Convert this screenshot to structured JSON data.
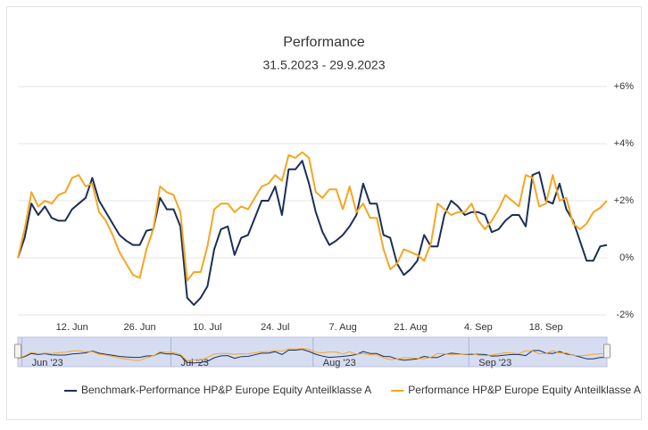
{
  "chart_data": {
    "type": "line",
    "title": "Performance",
    "subtitle": "31.5.2023 - 29.9.2023",
    "categories": [
      null,
      null,
      null,
      null,
      null,
      null,
      null,
      null,
      "12. Jun",
      null,
      null,
      null,
      null,
      null,
      null,
      null,
      null,
      null,
      "26. Jun",
      null,
      null,
      null,
      null,
      null,
      null,
      null,
      null,
      null,
      "10. Jul",
      null,
      null,
      null,
      null,
      null,
      null,
      null,
      null,
      null,
      "24. Jul",
      null,
      null,
      null,
      null,
      null,
      null,
      null,
      null,
      null,
      "7. Aug",
      null,
      null,
      null,
      null,
      null,
      null,
      null,
      null,
      null,
      "21. Aug",
      null,
      null,
      null,
      null,
      null,
      null,
      null,
      null,
      null,
      "4. Sep",
      null,
      null,
      null,
      null,
      null,
      null,
      null,
      null,
      null,
      "18. Sep",
      null,
      null,
      null,
      null,
      null,
      null,
      null,
      null,
      null
    ],
    "series": [
      {
        "name": "Benchmark-Performance HP&P Europe Equity Anteilklasse A",
        "color": "#1b2f55",
        "values": [
          0,
          0.7,
          1.9,
          1.5,
          1.8,
          1.4,
          1.3,
          1.3,
          1.7,
          1.9,
          2.1,
          2.8,
          2.0,
          1.6,
          1.2,
          0.8,
          0.6,
          0.45,
          0.45,
          0.95,
          1.0,
          2.1,
          1.7,
          1.7,
          1.1,
          -1.4,
          -1.65,
          -1.4,
          -1.0,
          0.3,
          1.0,
          1.1,
          0.1,
          0.7,
          0.8,
          1.4,
          2.0,
          2.0,
          2.5,
          1.5,
          3.1,
          3.1,
          3.4,
          2.6,
          1.6,
          0.9,
          0.45,
          0.6,
          0.8,
          1.1,
          1.5,
          2.6,
          1.9,
          1.9,
          0.8,
          0.7,
          -0.2,
          -0.6,
          -0.4,
          -0.1,
          0.8,
          0.4,
          0.4,
          1.5,
          2.0,
          1.8,
          1.5,
          1.6,
          1.6,
          1.5,
          0.9,
          1.0,
          1.3,
          1.5,
          1.5,
          1.1,
          2.9,
          3.0,
          2.0,
          1.9,
          2.6,
          1.7,
          1.3,
          0.6,
          -0.1,
          -0.1,
          0.4,
          0.45
        ]
      },
      {
        "name": "Performance HP&P Europe Equity Anteilklasse A",
        "color": "#f5a623",
        "values": [
          0,
          1.0,
          2.3,
          1.8,
          2.0,
          1.9,
          2.2,
          2.3,
          2.8,
          2.9,
          2.5,
          2.6,
          1.6,
          1.3,
          0.8,
          0.2,
          -0.2,
          -0.6,
          -0.7,
          0.3,
          1.0,
          2.5,
          2.3,
          2.2,
          1.6,
          -0.8,
          -0.5,
          -0.5,
          0.4,
          1.7,
          1.9,
          1.9,
          1.6,
          1.8,
          1.7,
          2.1,
          2.5,
          2.6,
          2.9,
          2.7,
          3.6,
          3.5,
          3.7,
          3.5,
          2.3,
          2.1,
          2.4,
          2.4,
          1.7,
          2.5,
          1.6,
          1.9,
          1.4,
          1.4,
          0.3,
          -0.4,
          -0.2,
          0.3,
          0.2,
          0.1,
          -0.1,
          0.5,
          1.9,
          1.7,
          1.5,
          1.6,
          1.6,
          1.9,
          1.3,
          1.0,
          1.3,
          1.7,
          2.2,
          2.0,
          1.8,
          2.9,
          2.8,
          1.8,
          1.9,
          2.9,
          2.0,
          2.1,
          1.2,
          1.0,
          1.2,
          1.6,
          1.75,
          2.0
        ]
      }
    ],
    "ylim": [
      -2,
      6
    ],
    "yticks": [
      {
        "value": -2,
        "label": "-2%"
      },
      {
        "value": 0,
        "label": "0%"
      },
      {
        "value": 2,
        "label": "+2%"
      },
      {
        "value": 4,
        "label": "+4%"
      },
      {
        "value": 6,
        "label": "+6%"
      }
    ],
    "grid": true,
    "navigator": {
      "categories": [
        null,
        "Jun '23",
        null,
        null,
        null,
        null,
        null,
        null,
        null,
        null,
        null,
        null,
        null,
        null,
        null,
        null,
        null,
        null,
        null,
        null,
        null,
        null,
        null,
        "Jul '23",
        null,
        null,
        null,
        null,
        null,
        null,
        null,
        null,
        null,
        null,
        null,
        null,
        null,
        null,
        null,
        null,
        null,
        null,
        null,
        null,
        "Aug '23",
        null,
        null,
        null,
        null,
        null,
        null,
        null,
        null,
        null,
        null,
        null,
        null,
        null,
        null,
        null,
        null,
        null,
        null,
        null,
        null,
        null,
        null,
        "Sep '23",
        null,
        null,
        null,
        null,
        null,
        null,
        null,
        null,
        null,
        null,
        null,
        null,
        null,
        null,
        null,
        null,
        null,
        null,
        null,
        null
      ]
    }
  }
}
